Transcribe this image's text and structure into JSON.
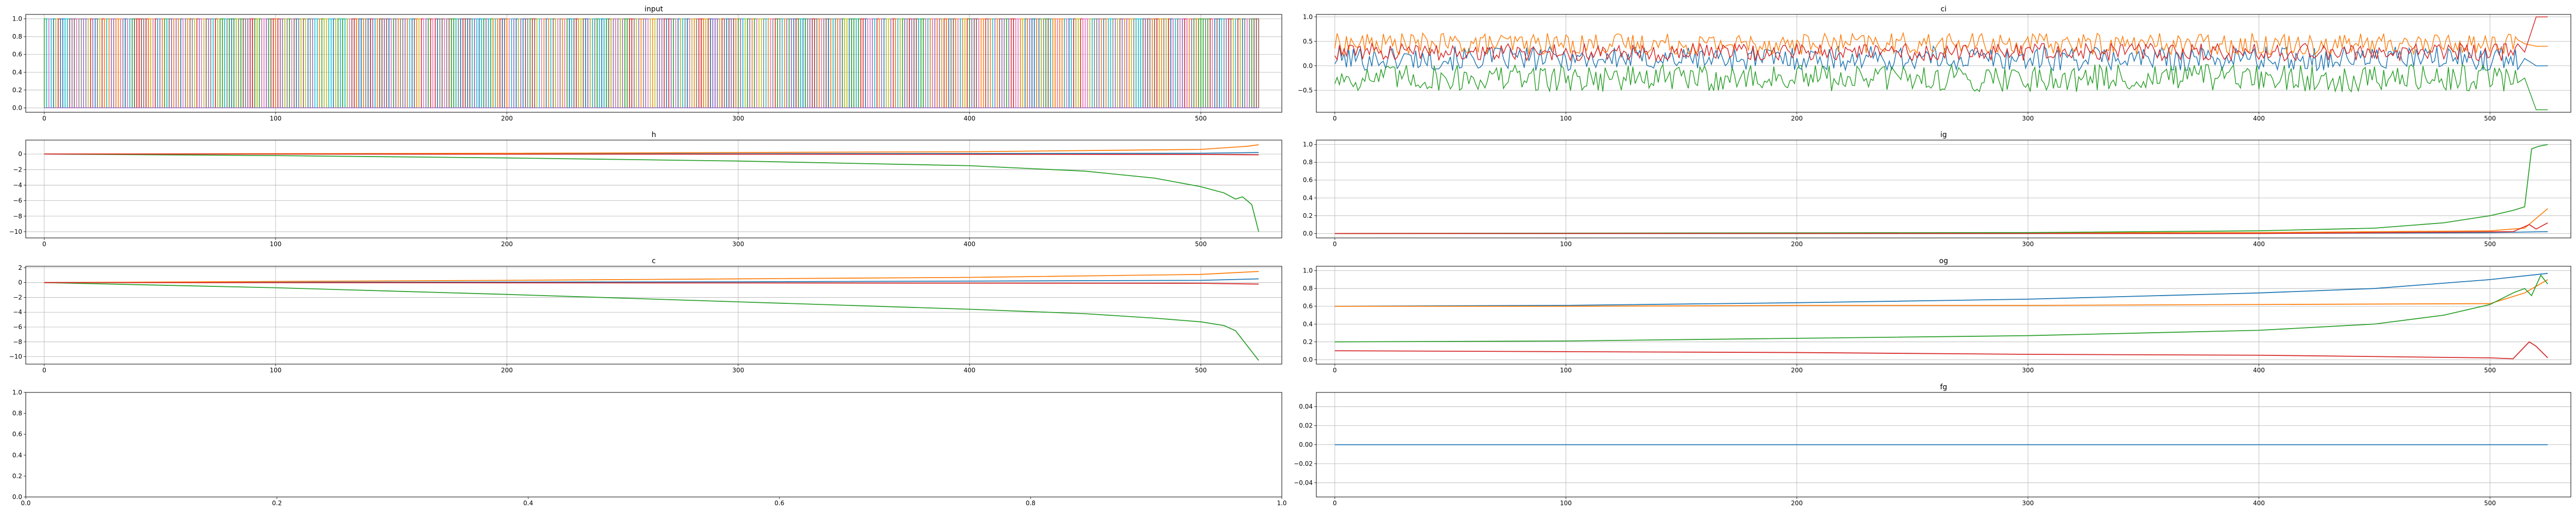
{
  "colors": [
    "#1f77b4",
    "#ff7f0e",
    "#2ca02c",
    "#d62728",
    "#9467bd",
    "#8c564b",
    "#e377c2",
    "#7f7f7f",
    "#bcbd22",
    "#17becf"
  ],
  "chart_data": [
    {
      "id": "input",
      "type": "line",
      "title": "input",
      "xlabel": "",
      "ylabel": "",
      "xlim": [
        -8,
        535
      ],
      "ylim": [
        -0.05,
        1.05
      ],
      "xticks": [
        "0",
        "100",
        "200",
        "300",
        "400",
        "500"
      ],
      "yticks": [
        "0.0",
        "0.2",
        "0.4",
        "0.6",
        "0.8",
        "1.0"
      ],
      "grid": true,
      "series_description": "many one-hot series (values 0 or 1) over x = 0..525",
      "series": []
    },
    {
      "id": "ci",
      "type": "line",
      "title": "ci",
      "xlim": [
        -8,
        535
      ],
      "ylim": [
        -0.95,
        1.05
      ],
      "xticks": [
        "0",
        "100",
        "200",
        "300",
        "400",
        "500"
      ],
      "yticks": [
        "−0.5",
        "0.0",
        "0.5",
        "1.0"
      ],
      "grid": true,
      "series": [
        {
          "color_index": 0,
          "values_summary": "noisy around 0.15, range -0.5..0.6, ends near 0.0"
        },
        {
          "color_index": 1,
          "values_summary": "noisy around 0.45, range 0.0..0.75, ends near 0.4"
        },
        {
          "color_index": 2,
          "values_summary": "noisy around -0.25, range -0.75..0.3, ends near -0.9"
        },
        {
          "color_index": 3,
          "values_summary": "noisy around 0.3, range -0.1..0.6, ends near 1.0"
        }
      ]
    },
    {
      "id": "h",
      "type": "line",
      "title": "h",
      "xlim": [
        -8,
        535
      ],
      "ylim": [
        -10.8,
        1.8
      ],
      "xticks": [
        "0",
        "100",
        "200",
        "300",
        "400",
        "500"
      ],
      "yticks": [
        "−10",
        "−8",
        "−6",
        "−4",
        "−2",
        "0"
      ],
      "grid": true,
      "series": [
        {
          "color_index": 0,
          "x": [
            0,
            300,
            500,
            525
          ],
          "y": [
            0.0,
            0.05,
            0.1,
            0.2
          ]
        },
        {
          "color_index": 1,
          "x": [
            0,
            200,
            400,
            500,
            520,
            525
          ],
          "y": [
            0.0,
            0.1,
            0.3,
            0.6,
            1.0,
            1.2
          ]
        },
        {
          "color_index": 2,
          "x": [
            0,
            100,
            200,
            300,
            400,
            450,
            480,
            500,
            510,
            515,
            518,
            522,
            525
          ],
          "y": [
            0.0,
            -0.2,
            -0.5,
            -0.9,
            -1.5,
            -2.2,
            -3.1,
            -4.2,
            -5.0,
            -5.8,
            -5.5,
            -6.5,
            -10.0
          ]
        },
        {
          "color_index": 3,
          "x": [
            0,
            300,
            500,
            525
          ],
          "y": [
            0.0,
            -0.02,
            -0.05,
            -0.1
          ]
        }
      ]
    },
    {
      "id": "ig",
      "type": "line",
      "title": "ig",
      "xlim": [
        -8,
        535
      ],
      "ylim": [
        -0.05,
        1.05
      ],
      "xticks": [
        "0",
        "100",
        "200",
        "300",
        "400",
        "500"
      ],
      "yticks": [
        "0.0",
        "0.2",
        "0.4",
        "0.6",
        "0.8",
        "1.0"
      ],
      "grid": true,
      "series": [
        {
          "color_index": 0,
          "x": [
            0,
            400,
            500,
            525
          ],
          "y": [
            0.0,
            0.0,
            0.01,
            0.02
          ]
        },
        {
          "color_index": 1,
          "x": [
            0,
            400,
            500,
            515,
            525
          ],
          "y": [
            0.0,
            0.01,
            0.03,
            0.06,
            0.28
          ]
        },
        {
          "color_index": 2,
          "x": [
            0,
            300,
            400,
            450,
            480,
            500,
            510,
            515,
            518,
            521,
            525
          ],
          "y": [
            0.0,
            0.01,
            0.03,
            0.06,
            0.12,
            0.2,
            0.26,
            0.3,
            0.95,
            0.98,
            1.0
          ]
        },
        {
          "color_index": 3,
          "x": [
            0,
            400,
            510,
            517,
            520,
            525
          ],
          "y": [
            0.0,
            0.0,
            0.02,
            0.1,
            0.05,
            0.12
          ]
        }
      ]
    },
    {
      "id": "c",
      "type": "line",
      "title": "c",
      "xlim": [
        -8,
        535
      ],
      "ylim": [
        -11,
        2.2
      ],
      "xticks": [
        "0",
        "100",
        "200",
        "300",
        "400",
        "500"
      ],
      "yticks": [
        "−10",
        "−8",
        "−6",
        "−4",
        "−2",
        "0",
        "2"
      ],
      "grid": true,
      "series": [
        {
          "color_index": 0,
          "x": [
            0,
            300,
            500,
            525
          ],
          "y": [
            0.0,
            0.1,
            0.3,
            0.5
          ]
        },
        {
          "color_index": 1,
          "x": [
            0,
            200,
            400,
            500,
            525
          ],
          "y": [
            0.0,
            0.3,
            0.7,
            1.1,
            1.5
          ]
        },
        {
          "color_index": 2,
          "x": [
            0,
            100,
            200,
            300,
            400,
            450,
            480,
            500,
            510,
            515,
            520,
            525
          ],
          "y": [
            0.0,
            -0.7,
            -1.6,
            -2.6,
            -3.6,
            -4.2,
            -4.8,
            -5.3,
            -5.8,
            -6.5,
            -8.5,
            -10.5
          ]
        },
        {
          "color_index": 3,
          "x": [
            0,
            300,
            500,
            525
          ],
          "y": [
            0.0,
            -0.05,
            -0.1,
            -0.2
          ]
        }
      ]
    },
    {
      "id": "og",
      "type": "line",
      "title": "og",
      "xlim": [
        -8,
        535
      ],
      "ylim": [
        -0.05,
        1.05
      ],
      "xticks": [
        "0",
        "100",
        "200",
        "300",
        "400",
        "500"
      ],
      "yticks": [
        "0.0",
        "0.2",
        "0.4",
        "0.6",
        "0.8",
        "1.0"
      ],
      "grid": true,
      "series": [
        {
          "color_index": 0,
          "x": [
            0,
            100,
            200,
            300,
            400,
            450,
            500,
            525
          ],
          "y": [
            0.6,
            0.61,
            0.64,
            0.68,
            0.75,
            0.8,
            0.9,
            0.97
          ]
        },
        {
          "color_index": 1,
          "x": [
            0,
            100,
            200,
            300,
            400,
            500,
            515,
            525
          ],
          "y": [
            0.6,
            0.6,
            0.61,
            0.61,
            0.62,
            0.63,
            0.75,
            0.9
          ]
        },
        {
          "color_index": 2,
          "x": [
            0,
            100,
            200,
            300,
            400,
            450,
            480,
            500,
            510,
            515,
            518,
            522,
            525
          ],
          "y": [
            0.2,
            0.21,
            0.24,
            0.27,
            0.33,
            0.4,
            0.5,
            0.62,
            0.75,
            0.8,
            0.72,
            0.95,
            0.85
          ]
        },
        {
          "color_index": 3,
          "x": [
            0,
            100,
            200,
            300,
            400,
            500,
            510,
            517,
            520,
            525
          ],
          "y": [
            0.1,
            0.09,
            0.08,
            0.06,
            0.05,
            0.02,
            0.01,
            0.2,
            0.15,
            0.02
          ]
        }
      ]
    },
    {
      "id": "empty",
      "type": "line",
      "title": "",
      "xlim": [
        0,
        1
      ],
      "ylim": [
        0,
        1
      ],
      "xticks": [
        "0.0",
        "0.2",
        "0.4",
        "0.6",
        "0.8",
        "1.0"
      ],
      "yticks": [
        "0.0",
        "0.2",
        "0.4",
        "0.6",
        "0.8",
        "1.0"
      ],
      "grid": false,
      "series": []
    },
    {
      "id": "fg",
      "type": "line",
      "title": "fg",
      "xlim": [
        -8,
        535
      ],
      "ylim": [
        -0.055,
        0.055
      ],
      "xticks": [
        "0",
        "100",
        "200",
        "300",
        "400",
        "500"
      ],
      "yticks": [
        "−0.04",
        "−0.02",
        "0.00",
        "0.02",
        "0.04"
      ],
      "grid": true,
      "series": [
        {
          "color_index": 0,
          "x": [
            0,
            525
          ],
          "y": [
            0.0,
            0.0
          ]
        }
      ]
    }
  ]
}
